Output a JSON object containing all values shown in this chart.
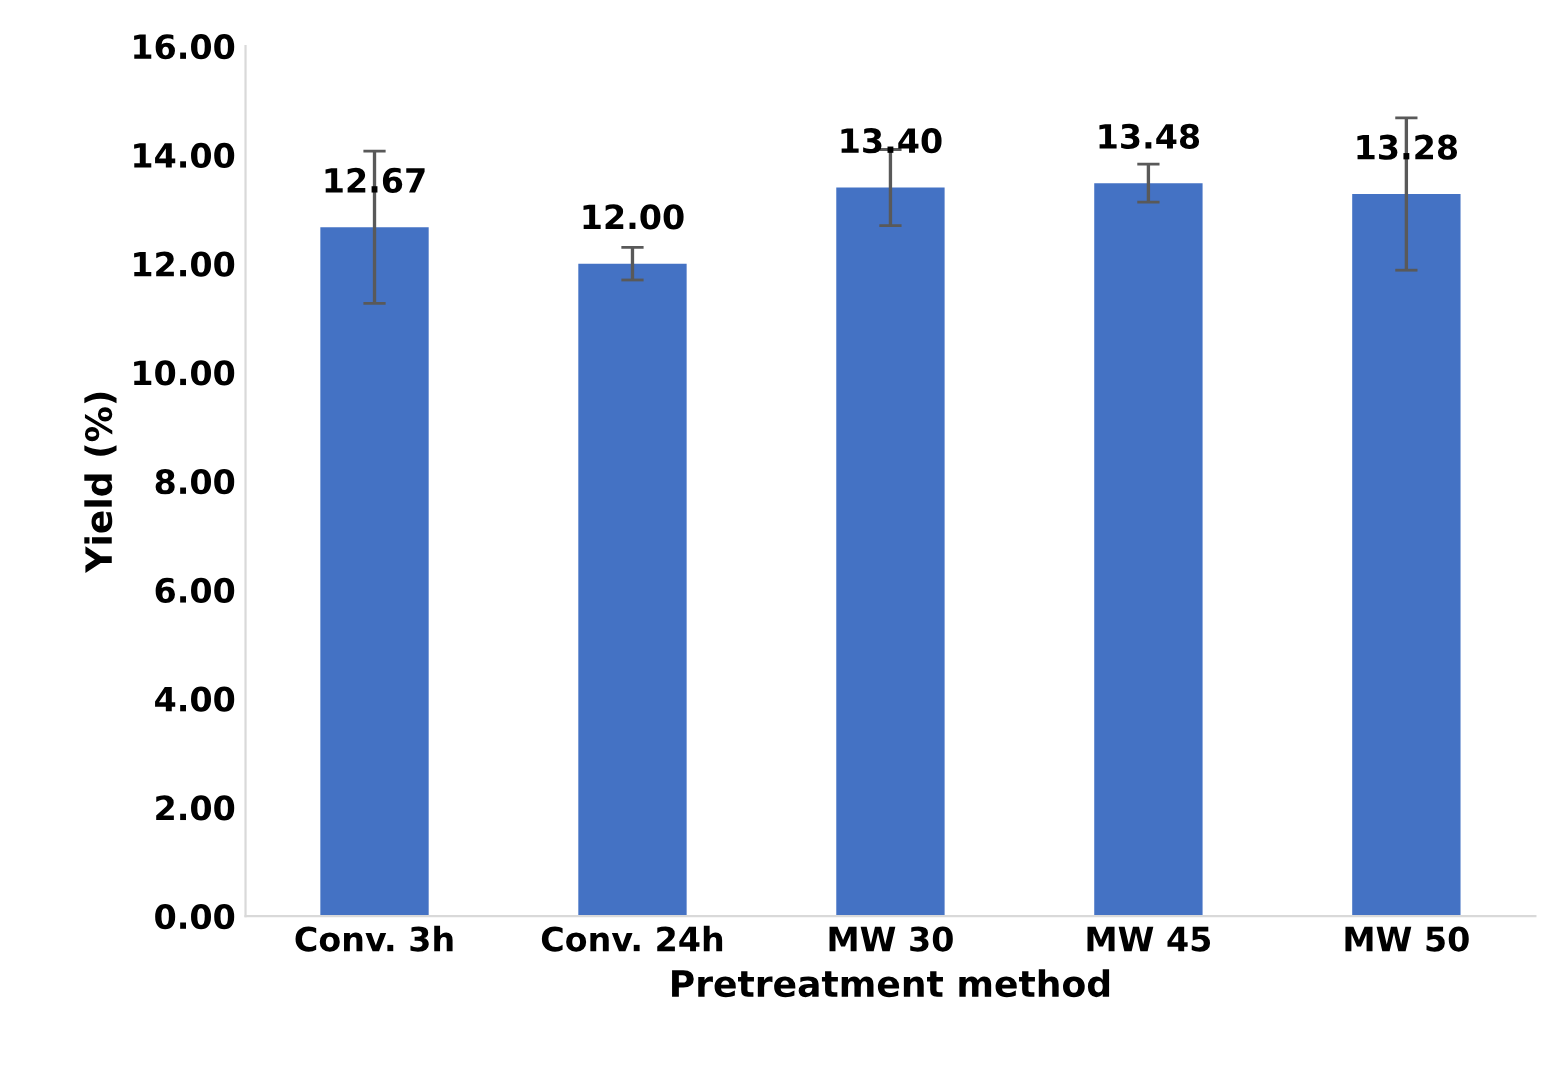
{
  "chart_data": {
    "type": "bar",
    "xlabel": "Pretreatment method",
    "ylabel": "Yield (%)",
    "categories": [
      "Conv. 3h",
      "Conv. 24h",
      "MW 30",
      "MW 45",
      "MW 50"
    ],
    "values": [
      12.67,
      12.0,
      13.4,
      13.48,
      13.28
    ],
    "errors": [
      1.4,
      0.3,
      0.7,
      0.35,
      1.4
    ],
    "value_labels": [
      "12.67",
      "12.00",
      "13.40",
      "13.48",
      "13.28"
    ],
    "color": "#4472c4",
    "ylim": [
      0,
      16
    ],
    "yticks": [
      {
        "value": 0,
        "label": "0.00"
      },
      {
        "value": 2,
        "label": "2.00"
      },
      {
        "value": 4,
        "label": "4.00"
      },
      {
        "value": 6,
        "label": "6.00"
      },
      {
        "value": 8,
        "label": "8.00"
      },
      {
        "value": 10,
        "label": "10.00"
      },
      {
        "value": 12,
        "label": "12.00"
      },
      {
        "value": 14,
        "label": "14.00"
      },
      {
        "value": 16,
        "label": "16.00"
      }
    ]
  }
}
